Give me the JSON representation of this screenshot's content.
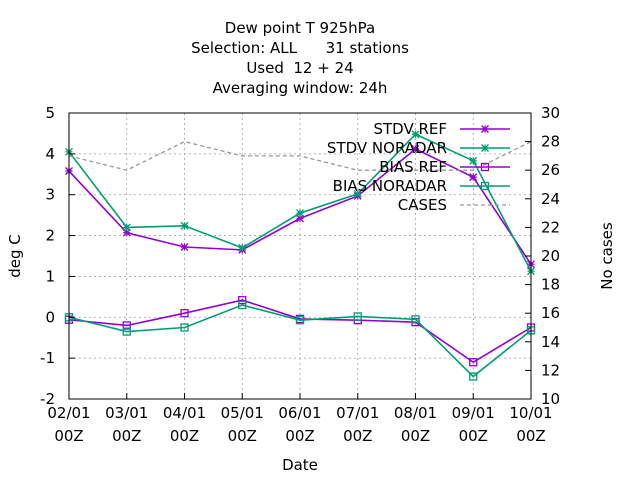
{
  "chart_data": {
    "type": "line",
    "title_lines": [
      "Dew point T 925hPa",
      "Selection: ALL      31 stations",
      "Used  12 + 24",
      "Averaging window: 24h"
    ],
    "xlabel": "Date",
    "ylabel": "deg C",
    "y2label": "No cases",
    "x_categories": [
      [
        "02/01",
        "00Z"
      ],
      [
        "03/01",
        "00Z"
      ],
      [
        "04/01",
        "00Z"
      ],
      [
        "05/01",
        "00Z"
      ],
      [
        "06/01",
        "00Z"
      ],
      [
        "07/01",
        "00Z"
      ],
      [
        "08/01",
        "00Z"
      ],
      [
        "09/01",
        "00Z"
      ],
      [
        "10/01",
        "00Z"
      ]
    ],
    "ylim": [
      -2,
      5
    ],
    "yticks": [
      -2,
      -1,
      0,
      1,
      2,
      3,
      4,
      5
    ],
    "y2lim": [
      10,
      30
    ],
    "y2ticks": [
      10,
      12,
      14,
      16,
      18,
      20,
      22,
      24,
      26,
      28,
      30
    ],
    "grid": true,
    "legend_position": "top-right",
    "series": [
      {
        "name": "STDV REF",
        "axis": "y",
        "color": "#9400d3",
        "marker": "star",
        "dash": "",
        "values": [
          3.58,
          2.07,
          1.72,
          1.65,
          2.42,
          2.97,
          4.12,
          3.43,
          1.3
        ]
      },
      {
        "name": "STDV NORADAR",
        "axis": "y",
        "color": "#009e73",
        "marker": "star",
        "dash": "",
        "values": [
          4.05,
          2.2,
          2.24,
          1.7,
          2.55,
          3.02,
          4.48,
          3.83,
          1.13
        ]
      },
      {
        "name": "BIAS REF",
        "axis": "y",
        "color": "#9400d3",
        "marker": "square",
        "dash": "",
        "values": [
          -0.06,
          -0.2,
          0.1,
          0.42,
          -0.04,
          -0.07,
          -0.12,
          -1.1,
          -0.25
        ]
      },
      {
        "name": "BIAS NORADAR",
        "axis": "y",
        "color": "#009e73",
        "marker": "square",
        "dash": "",
        "values": [
          0.0,
          -0.35,
          -0.25,
          0.3,
          -0.07,
          0.02,
          -0.05,
          -1.45,
          -0.32
        ]
      },
      {
        "name": "CASES",
        "axis": "y2",
        "color": "#999999",
        "marker": "",
        "dash": "4,3",
        "values": [
          27,
          26,
          28,
          27,
          27,
          26,
          26,
          26,
          28
        ]
      }
    ]
  }
}
